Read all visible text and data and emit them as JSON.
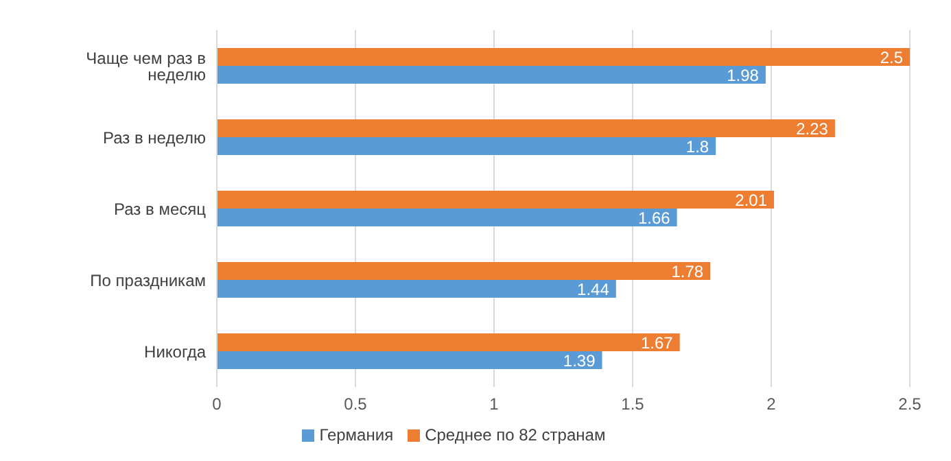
{
  "chart_data": {
    "type": "bar",
    "orientation": "horizontal",
    "categories": [
      "Чаще чем раз в неделю",
      "Раз в неделю",
      "Раз в месяц",
      "По праздникам",
      "Никогда"
    ],
    "series": [
      {
        "name": "Среднее по 82 странам",
        "color": "#ed7d31",
        "values": [
          2.5,
          2.23,
          2.01,
          1.78,
          1.67
        ]
      },
      {
        "name": "Германия",
        "color": "#5b9bd5",
        "values": [
          1.98,
          1.8,
          1.66,
          1.44,
          1.39
        ]
      }
    ],
    "xlim": [
      0,
      2.5
    ],
    "xticks": [
      0,
      0.5,
      1,
      1.5,
      2,
      2.5
    ],
    "grid": "x",
    "legend": "bottom",
    "data_labels": true
  }
}
